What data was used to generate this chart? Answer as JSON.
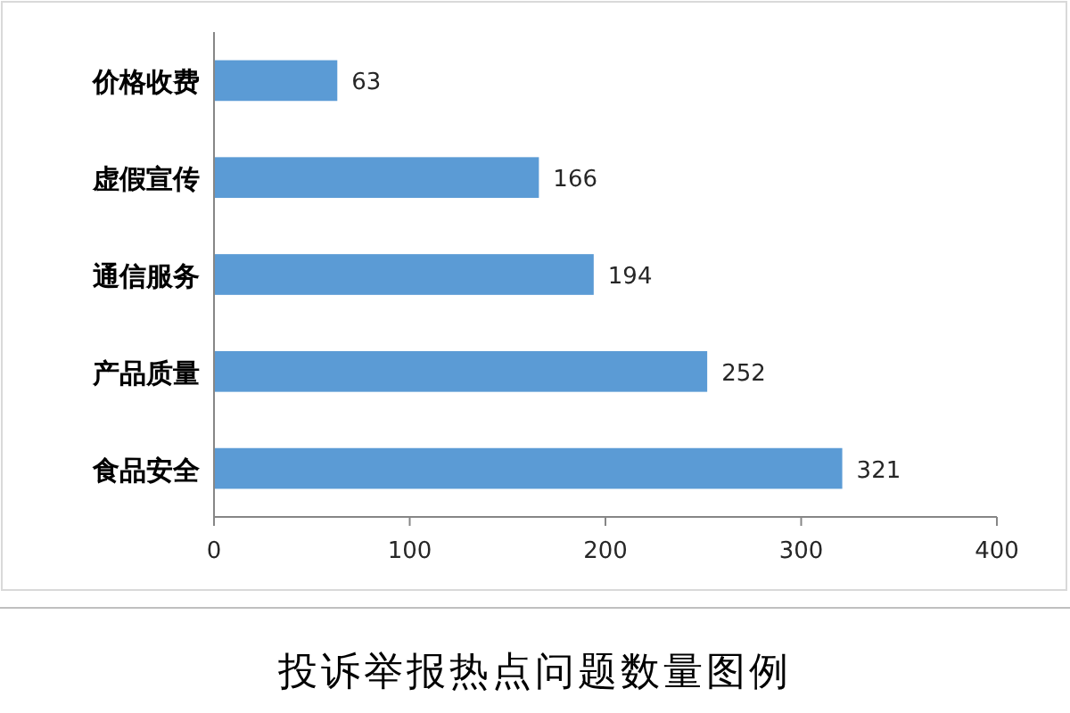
{
  "chart_data": {
    "type": "bar",
    "orientation": "horizontal",
    "title": "投诉举报热点问题数量图例",
    "categories": [
      "价格收费",
      "虚假宣传",
      "通信服务",
      "产品质量",
      "食品安全"
    ],
    "values": [
      63,
      166,
      194,
      252,
      321
    ],
    "color": "#5b9bd5",
    "xlim": [
      0,
      400
    ],
    "xticks": [
      0,
      100,
      200,
      300,
      400
    ],
    "data_labels": true
  }
}
